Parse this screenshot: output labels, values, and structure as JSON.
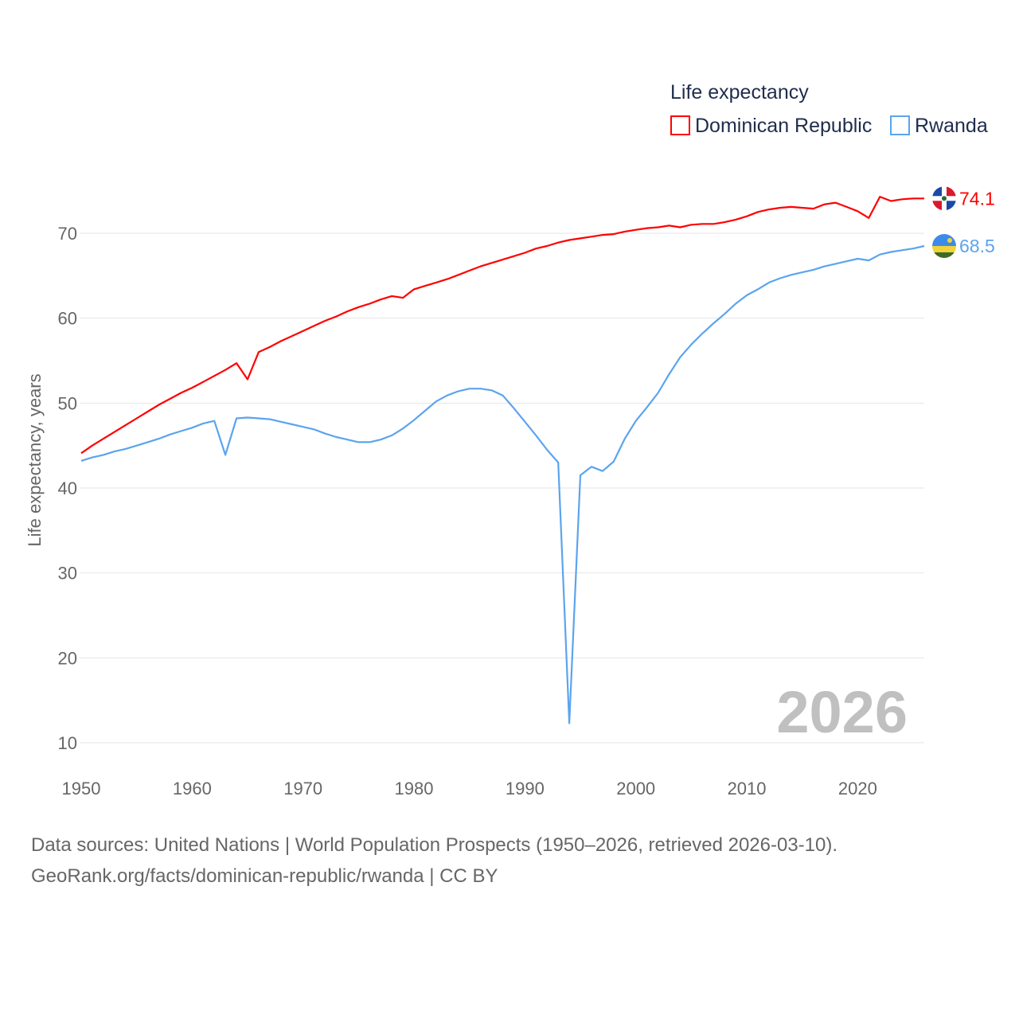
{
  "chart_data": {
    "type": "line",
    "title": "",
    "legend_title": "Life expectancy",
    "legend_position": "top-right",
    "xlabel": "",
    "ylabel": "Life expectancy, years",
    "xlim": [
      1950,
      2026
    ],
    "ylim": [
      10,
      70
    ],
    "x_ticks": [
      "1950",
      "1960",
      "1970",
      "1980",
      "1990",
      "2000",
      "2010",
      "2020"
    ],
    "y_ticks": [
      "10",
      "20",
      "30",
      "40",
      "50",
      "60",
      "70"
    ],
    "grid": true,
    "year_watermark": "2026",
    "x": [
      1950,
      1951,
      1952,
      1953,
      1954,
      1955,
      1956,
      1957,
      1958,
      1959,
      1960,
      1961,
      1962,
      1963,
      1964,
      1965,
      1966,
      1967,
      1968,
      1969,
      1970,
      1971,
      1972,
      1973,
      1974,
      1975,
      1976,
      1977,
      1978,
      1979,
      1980,
      1981,
      1982,
      1983,
      1984,
      1985,
      1986,
      1987,
      1988,
      1989,
      1990,
      1991,
      1992,
      1993,
      1994,
      1995,
      1996,
      1997,
      1998,
      1999,
      2000,
      2001,
      2002,
      2003,
      2004,
      2005,
      2006,
      2007,
      2008,
      2009,
      2010,
      2011,
      2012,
      2013,
      2014,
      2015,
      2016,
      2017,
      2018,
      2019,
      2020,
      2021,
      2022,
      2023,
      2024,
      2025,
      2026
    ],
    "series": [
      {
        "name": "Dominican Republic",
        "color": "#ff0000",
        "end_label": "74.1",
        "values": [
          44.1,
          45.0,
          45.8,
          46.6,
          47.4,
          48.2,
          49.0,
          49.8,
          50.5,
          51.2,
          51.8,
          52.5,
          53.2,
          53.9,
          54.7,
          52.8,
          56.0,
          56.6,
          57.3,
          57.9,
          58.5,
          59.1,
          59.7,
          60.2,
          60.8,
          61.3,
          61.7,
          62.2,
          62.6,
          62.4,
          63.4,
          63.8,
          64.2,
          64.6,
          65.1,
          65.6,
          66.1,
          66.5,
          66.9,
          67.3,
          67.7,
          68.2,
          68.5,
          68.9,
          69.2,
          69.4,
          69.6,
          69.8,
          69.9,
          70.2,
          70.4,
          70.6,
          70.7,
          70.9,
          70.7,
          71.0,
          71.1,
          71.1,
          71.3,
          71.6,
          72.0,
          72.5,
          72.8,
          73.0,
          73.1,
          73.0,
          72.9,
          73.4,
          73.6,
          73.1,
          72.6,
          71.8,
          74.3,
          73.8,
          74.0,
          74.1,
          74.1
        ]
      },
      {
        "name": "Rwanda",
        "color": "#5ba4ee",
        "end_label": "68.5",
        "values": [
          43.2,
          43.6,
          43.9,
          44.3,
          44.6,
          45.0,
          45.4,
          45.8,
          46.3,
          46.7,
          47.1,
          47.6,
          47.9,
          43.9,
          48.2,
          48.3,
          48.2,
          48.1,
          47.8,
          47.5,
          47.2,
          46.9,
          46.4,
          46.0,
          45.7,
          45.4,
          45.4,
          45.7,
          46.2,
          47.0,
          48.0,
          49.1,
          50.2,
          50.9,
          51.4,
          51.7,
          51.7,
          51.5,
          50.9,
          49.4,
          47.8,
          46.2,
          44.5,
          43.0,
          12.3,
          41.5,
          42.5,
          42.0,
          43.1,
          45.8,
          47.9,
          49.5,
          51.2,
          53.4,
          55.4,
          56.9,
          58.2,
          59.4,
          60.5,
          61.7,
          62.7,
          63.4,
          64.2,
          64.7,
          65.1,
          65.4,
          65.7,
          66.1,
          66.4,
          66.7,
          67.0,
          66.8,
          67.5,
          67.8,
          68.0,
          68.2,
          68.5
        ]
      }
    ]
  },
  "footer": {
    "line1": "Data sources: United Nations | World Population Prospects (1950–2026, retrieved 2026-03-10).",
    "line2": "GeoRank.org/facts/dominican-republic/rwanda | CC BY"
  }
}
